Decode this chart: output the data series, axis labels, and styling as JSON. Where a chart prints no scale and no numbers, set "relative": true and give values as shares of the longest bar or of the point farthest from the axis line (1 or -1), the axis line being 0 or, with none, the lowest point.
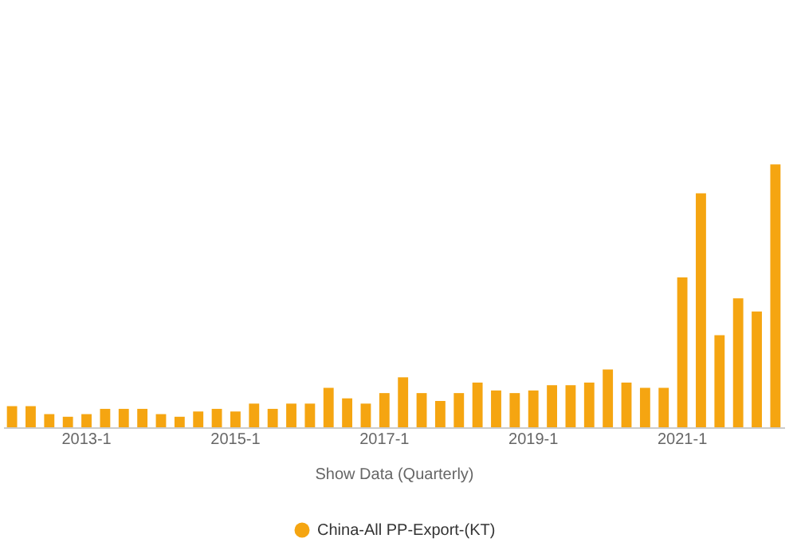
{
  "chart_data": {
    "type": "bar",
    "relative": true,
    "xlabel": "Show Data (Quarterly)",
    "legend": "bottom",
    "categories": [
      null,
      null,
      null,
      null,
      "2013-1",
      null,
      null,
      null,
      null,
      null,
      null,
      null,
      "2015-1",
      null,
      null,
      null,
      null,
      null,
      null,
      null,
      "2017-1",
      null,
      null,
      null,
      null,
      null,
      null,
      null,
      "2019-1",
      null,
      null,
      null,
      null,
      null,
      null,
      null,
      "2021-1",
      null,
      null,
      null,
      null,
      null
    ],
    "series": [
      {
        "name": "China-All PP-Export-(KT)",
        "color": "#f5a511",
        "values": [
          0.08,
          0.08,
          0.05,
          0.04,
          0.05,
          0.07,
          0.07,
          0.07,
          0.05,
          0.04,
          0.06,
          0.07,
          0.06,
          0.09,
          0.07,
          0.09,
          0.09,
          0.15,
          0.11,
          0.09,
          0.13,
          0.19,
          0.13,
          0.1,
          0.13,
          0.17,
          0.14,
          0.13,
          0.14,
          0.16,
          0.16,
          0.17,
          0.22,
          0.17,
          0.15,
          0.15,
          0.57,
          0.89,
          0.35,
          0.49,
          0.44,
          1
        ]
      }
    ]
  }
}
